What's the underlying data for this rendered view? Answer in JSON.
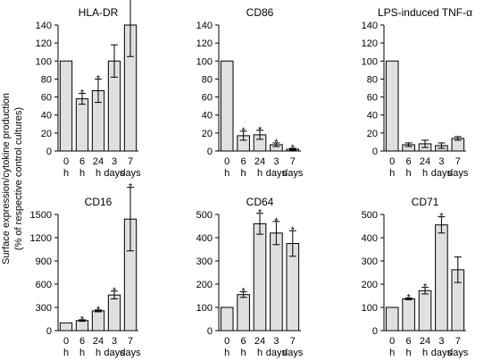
{
  "figure": {
    "ylabel": "Surface expression/cytokine production",
    "ylabel2": "(% of respective control cultures)"
  },
  "chart_data": [
    {
      "type": "bar",
      "title": "HLA-DR",
      "categories": [
        [
          "0",
          "h"
        ],
        [
          "6",
          "h"
        ],
        [
          "24",
          "h"
        ],
        [
          "3",
          "days"
        ],
        [
          "7",
          "days"
        ]
      ],
      "values": [
        100,
        58,
        67,
        100,
        140
      ],
      "error": [
        null,
        6,
        13,
        18,
        35
      ],
      "significant": [
        false,
        true,
        true,
        false,
        false
      ],
      "ylim": [
        0,
        140
      ],
      "yticks": [
        0,
        20,
        40,
        60,
        80,
        100,
        120,
        140
      ],
      "bar_color": "#e0e0e0"
    },
    {
      "type": "bar",
      "title": "CD86",
      "categories": [
        [
          "0",
          "h"
        ],
        [
          "6",
          "h"
        ],
        [
          "24",
          "h"
        ],
        [
          "3",
          "days"
        ],
        [
          "7",
          "days"
        ]
      ],
      "values": [
        100,
        17,
        18,
        7,
        2
      ],
      "error": [
        null,
        5,
        5,
        2,
        1
      ],
      "significant": [
        false,
        true,
        true,
        true,
        true
      ],
      "ylim": [
        0,
        140
      ],
      "yticks": [
        0,
        20,
        40,
        60,
        80,
        100,
        120,
        140
      ],
      "bar_color": "#e0e0e0"
    },
    {
      "type": "bar",
      "title": "LPS-induced TNF-α",
      "categories": [
        [
          "0",
          "h"
        ],
        [
          "6",
          "h"
        ],
        [
          "24",
          "h"
        ],
        [
          "3",
          "days"
        ],
        [
          "7",
          "days"
        ]
      ],
      "values": [
        100,
        7,
        8,
        6,
        14
      ],
      "error": [
        null,
        2,
        4,
        3,
        2
      ],
      "significant": [
        false,
        false,
        false,
        false,
        false
      ],
      "ylim": [
        0,
        140
      ],
      "yticks": [
        0,
        20,
        40,
        60,
        80,
        100,
        120,
        140
      ],
      "bar_color": "#e0e0e0"
    },
    {
      "type": "bar",
      "title": "CD16",
      "categories": [
        [
          "0",
          "h"
        ],
        [
          "6",
          "h"
        ],
        [
          "24",
          "h"
        ],
        [
          "3",
          "days"
        ],
        [
          "7",
          "days"
        ]
      ],
      "values": [
        100,
        130,
        255,
        460,
        1440
      ],
      "error": [
        null,
        10,
        12,
        50,
        410
      ],
      "significant": [
        false,
        true,
        true,
        true,
        true
      ],
      "ylim": [
        0,
        1500
      ],
      "yticks": [
        0,
        300,
        600,
        900,
        1200,
        1500
      ],
      "bar_color": "#e0e0e0"
    },
    {
      "type": "bar",
      "title": "CD64",
      "categories": [
        [
          "0",
          "h"
        ],
        [
          "6",
          "h"
        ],
        [
          "24",
          "h"
        ],
        [
          "3",
          "days"
        ],
        [
          "7",
          "days"
        ]
      ],
      "values": [
        100,
        155,
        460,
        420,
        375
      ],
      "error": [
        null,
        12,
        45,
        50,
        55
      ],
      "significant": [
        false,
        true,
        true,
        true,
        true
      ],
      "ylim": [
        0,
        500
      ],
      "yticks": [
        0,
        100,
        200,
        300,
        400,
        500
      ],
      "bar_color": "#e0e0e0"
    },
    {
      "type": "bar",
      "title": "CD71",
      "categories": [
        [
          "0",
          "h"
        ],
        [
          "6",
          "h"
        ],
        [
          "24",
          "h"
        ],
        [
          "3",
          "days"
        ],
        [
          "7",
          "days"
        ]
      ],
      "values": [
        100,
        137,
        172,
        455,
        262
      ],
      "error": [
        null,
        4,
        14,
        35,
        55
      ],
      "significant": [
        false,
        true,
        true,
        true,
        false
      ],
      "ylim": [
        0,
        500
      ],
      "yticks": [
        0,
        100,
        200,
        300,
        400,
        500
      ],
      "bar_color": "#e0e0e0"
    }
  ]
}
